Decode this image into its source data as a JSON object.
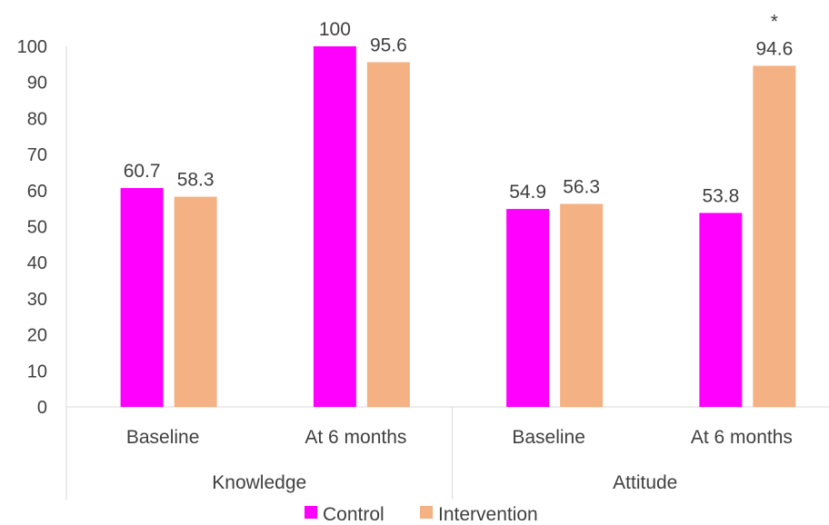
{
  "chart_data": {
    "type": "bar",
    "groups": [
      {
        "label": "Knowledge",
        "categories": [
          "Baseline",
          "At 6 months"
        ]
      },
      {
        "label": "Attitude",
        "categories": [
          "Baseline",
          "At 6 months"
        ]
      }
    ],
    "categories": [
      "Baseline",
      "At 6 months",
      "Baseline",
      "At 6 months"
    ],
    "series": [
      {
        "name": "Control",
        "color": "#FF00FF",
        "values": [
          60.7,
          100,
          54.9,
          53.8
        ]
      },
      {
        "name": "Intervention",
        "color": "#F4B183",
        "values": [
          58.3,
          95.6,
          56.3,
          94.6
        ]
      }
    ],
    "data_labels": [
      [
        "60.7",
        "100",
        "54.9",
        "53.8"
      ],
      [
        "58.3",
        "95.6",
        "56.3",
        "94.6"
      ]
    ],
    "annotations": [
      {
        "text": "*",
        "category_index": 3,
        "series_index": 1
      }
    ],
    "yticks": [
      0,
      10,
      20,
      30,
      40,
      50,
      60,
      70,
      80,
      90,
      100
    ],
    "ylim": [
      0,
      100
    ],
    "grid": false,
    "legend_position": "bottom",
    "title": "",
    "xlabel": "",
    "ylabel": ""
  }
}
